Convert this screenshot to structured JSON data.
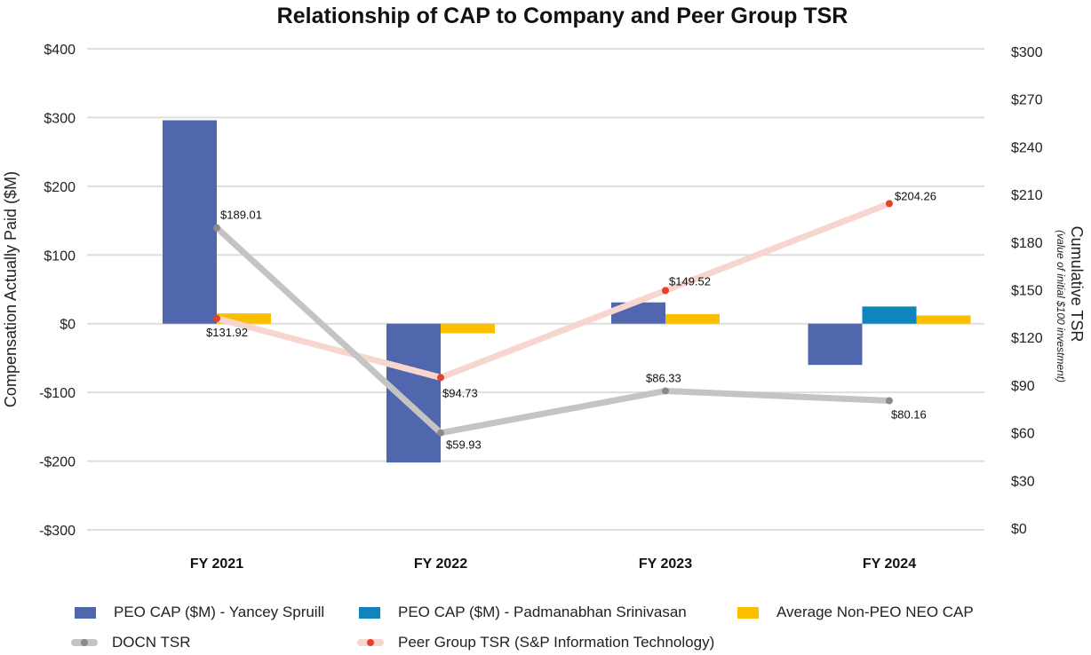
{
  "chart_data": {
    "type": "bar+line",
    "title": "Relationship of CAP to Company and Peer Group TSR",
    "categories": [
      "FY 2021",
      "FY 2022",
      "FY 2023",
      "FY 2024"
    ],
    "left_axis": {
      "label": "Compensation Actually Paid ($M)",
      "range": [
        -300,
        400
      ],
      "ticks": [
        400,
        300,
        200,
        100,
        0,
        -100,
        -200,
        -300
      ],
      "tick_labels": [
        "$400",
        "$300",
        "$200",
        "$100",
        "$0",
        "-$100",
        "-$200",
        "-$300"
      ],
      "grid": true
    },
    "right_axis": {
      "label": "Cumulative TSR",
      "sublabel": "(value of initial $100 investment)",
      "range": [
        0,
        300
      ],
      "ticks": [
        300,
        270,
        240,
        210,
        180,
        150,
        120,
        90,
        60,
        30,
        0
      ],
      "tick_labels": [
        "$300",
        "$270",
        "$240",
        "$210",
        "$180",
        "$150",
        "$120",
        "$90",
        "$60",
        "$30",
        "$0"
      ]
    },
    "bar_series": [
      {
        "name": "PEO CAP ($M) - Yancey Spruill",
        "color": "#5066ad",
        "values": [
          296,
          -202,
          31,
          -60
        ]
      },
      {
        "name": "PEO CAP ($M) - Padmanabhan Srinivasan",
        "color": "#0e86bd",
        "values": [
          null,
          null,
          null,
          25
        ]
      },
      {
        "name": "Average Non-PEO NEO CAP",
        "color": "#fbbf00",
        "values": [
          15,
          -14,
          14,
          12
        ]
      }
    ],
    "line_series": [
      {
        "name": "DOCN TSR",
        "color": "#c4c4c4",
        "marker_color": "#8a8a8a",
        "values": [
          189.01,
          59.93,
          86.33,
          80.16
        ],
        "labels": [
          "$189.01",
          "$59.93",
          "$86.33",
          "$80.16"
        ]
      },
      {
        "name": "Peer Group TSR (S&P Information Technology)",
        "color": "#f7d6d0",
        "marker_color": "#e2432a",
        "values": [
          131.92,
          94.73,
          149.52,
          204.26
        ],
        "labels": [
          "$131.92",
          "$94.73",
          "$149.52",
          "$204.26"
        ]
      }
    ],
    "legend_position": "bottom"
  },
  "legend": {
    "items": [
      {
        "label": "PEO CAP ($M) - Yancey Spruill"
      },
      {
        "label": "PEO CAP ($M) - Padmanabhan Srinivasan"
      },
      {
        "label": "Average Non-PEO NEO CAP"
      },
      {
        "label": "DOCN TSR"
      },
      {
        "label": "Peer Group TSR (S&P Information Technology)"
      }
    ]
  }
}
